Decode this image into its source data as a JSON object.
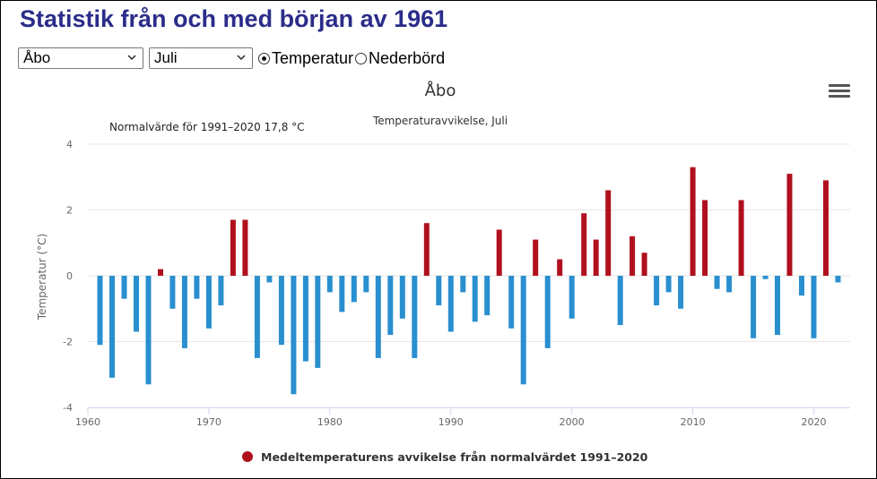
{
  "page": {
    "title": "Statistik från och med början av 1961"
  },
  "controls": {
    "station_select": {
      "value": "Åbo"
    },
    "month_select": {
      "value": "Juli"
    },
    "radio_temperature": {
      "label": "Temperatur",
      "checked": true
    },
    "radio_precip": {
      "label": "Nederbörd",
      "checked": false
    }
  },
  "chart_menu": {
    "icon": "hamburger-menu-icon"
  },
  "chart_data": {
    "type": "bar",
    "title": "Åbo",
    "subtitle": "Temperaturavvikelse, Juli",
    "annotation": "Normalvärde för 1991–2020 17,8 °C",
    "ylabel": "Temperatur (°C)",
    "xlabel": "",
    "ylim": [
      -4,
      4
    ],
    "yticks": [
      -4,
      -2,
      0,
      2,
      4
    ],
    "xlim": [
      1960,
      2023
    ],
    "xticks": [
      1960,
      1970,
      1980,
      1990,
      2000,
      2010,
      2020
    ],
    "grid": true,
    "legend": {
      "label": "Medeltemperaturens avvikelse från normalvärdet 1991–2020",
      "placement": "bottom-center"
    },
    "colors": {
      "positive": "#b0101e",
      "negative": "#2a8fcf",
      "grid": "#e6e6e6",
      "axis": "#ccd6eb",
      "text": "#666666",
      "title": "#333333"
    },
    "x": [
      1961,
      1962,
      1963,
      1964,
      1965,
      1966,
      1967,
      1968,
      1969,
      1970,
      1971,
      1972,
      1973,
      1974,
      1975,
      1976,
      1977,
      1978,
      1979,
      1980,
      1981,
      1982,
      1983,
      1984,
      1985,
      1986,
      1987,
      1988,
      1989,
      1990,
      1991,
      1992,
      1993,
      1994,
      1995,
      1996,
      1997,
      1998,
      1999,
      2000,
      2001,
      2002,
      2003,
      2004,
      2005,
      2006,
      2007,
      2008,
      2009,
      2010,
      2011,
      2012,
      2013,
      2014,
      2015,
      2016,
      2017,
      2018,
      2019,
      2020,
      2021,
      2022
    ],
    "values": [
      -2.1,
      -3.1,
      -0.7,
      -1.7,
      -3.3,
      0.2,
      -1.0,
      -2.2,
      -0.7,
      -1.6,
      -0.9,
      1.7,
      1.7,
      -2.5,
      -0.2,
      -2.1,
      -3.6,
      -2.6,
      -2.8,
      -0.5,
      -1.1,
      -0.8,
      -0.5,
      -2.5,
      -1.8,
      -1.3,
      -2.5,
      1.6,
      -0.9,
      -1.7,
      -0.5,
      -1.4,
      -1.2,
      1.4,
      -1.6,
      -3.3,
      1.1,
      -2.2,
      0.5,
      -1.3,
      1.9,
      1.1,
      2.6,
      -1.5,
      1.2,
      0.7,
      -0.9,
      -0.5,
      -1.0,
      3.3,
      2.3,
      -0.4,
      -0.5,
      2.3,
      -1.9,
      -0.1,
      -1.8,
      3.1,
      -0.6,
      -1.9,
      2.9,
      -0.2
    ]
  }
}
